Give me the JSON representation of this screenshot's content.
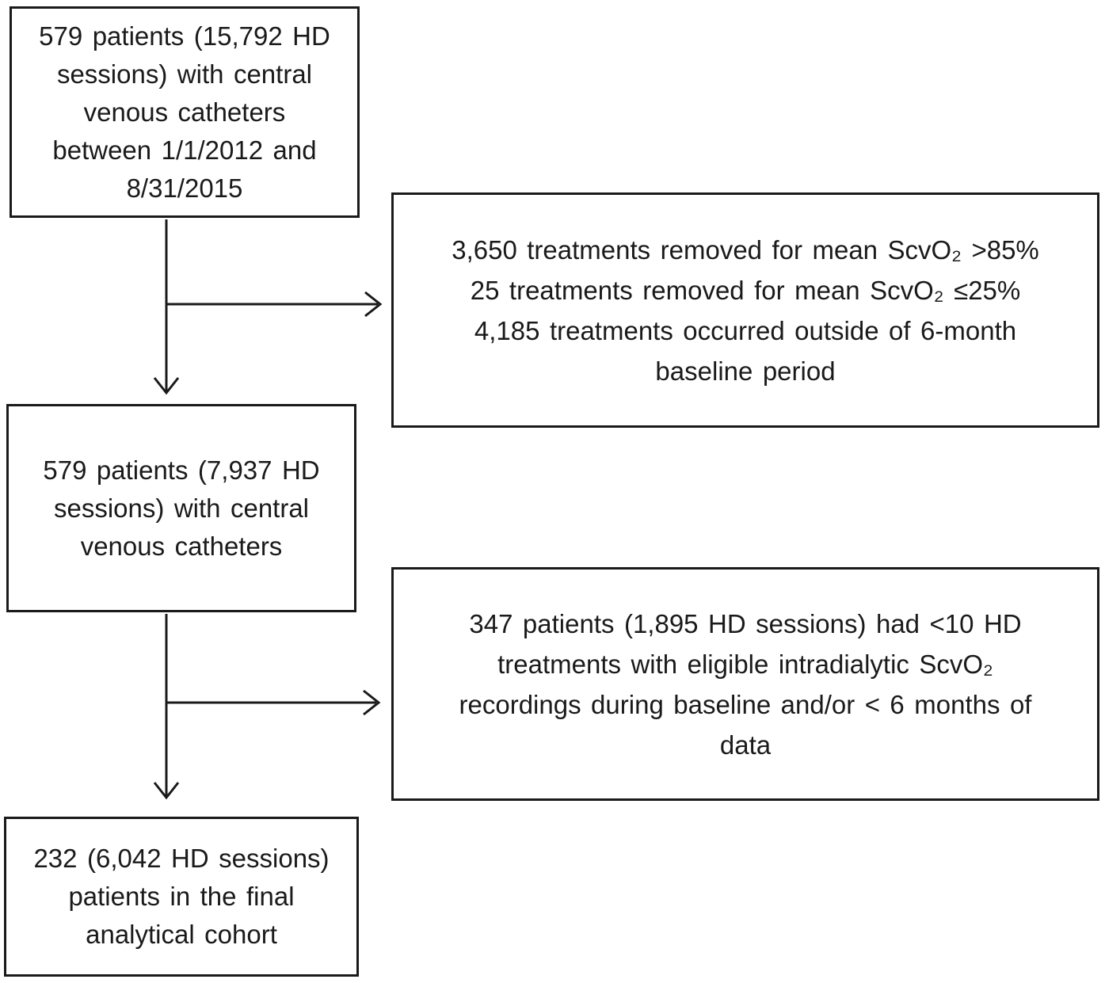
{
  "page": {
    "background_color": "#ffffff",
    "text_color": "#1a1a1a",
    "line_color": "#1a1a1a"
  },
  "diagram": {
    "type": "patient-flow-chart",
    "nodes": {
      "initial_cohort": {
        "lines": [
          "579 patients (15,792 HD",
          "sessions) with central",
          "venous catheters",
          "between 1/1/2012 and",
          "8/31/2015"
        ]
      },
      "excluded_treatments": {
        "lines": [
          "3,650 treatments removed for mean ScvO₂ >85%",
          "25 treatments removed for mean ScvO₂ ≤25%",
          "4,185 treatments occurred outside of 6-month",
          "baseline period"
        ]
      },
      "eligible_sessions": {
        "lines": [
          "579 patients (7,937 HD",
          "sessions) with central",
          "venous catheters"
        ]
      },
      "excluded_patients": {
        "lines": [
          "347 patients (1,895 HD sessions) had <10 HD",
          "treatments with eligible intradialytic ScvO₂",
          "recordings during baseline and/or < 6 months of",
          "data"
        ]
      },
      "final_cohort": {
        "lines": [
          "232 (6,042 HD sessions)",
          "patients in the final",
          "analytical cohort"
        ]
      }
    }
  }
}
